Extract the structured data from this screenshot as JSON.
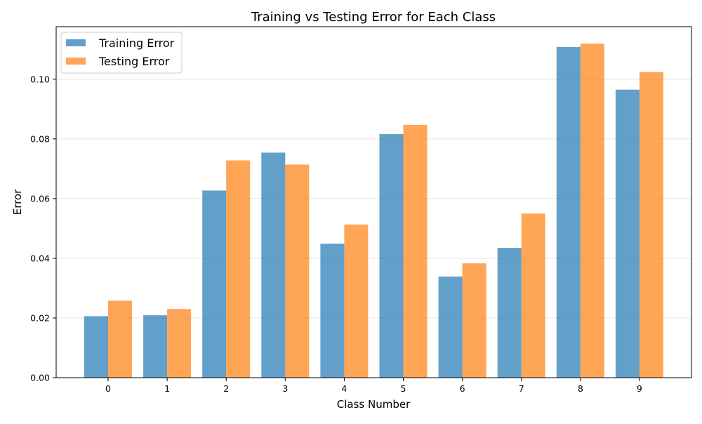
{
  "chart_data": {
    "type": "bar",
    "title": "Training vs Testing Error for Each Class",
    "xlabel": "Class Number",
    "ylabel": "Error",
    "categories": [
      "0",
      "1",
      "2",
      "3",
      "4",
      "5",
      "6",
      "7",
      "8",
      "9"
    ],
    "series": [
      {
        "name": "Training Error",
        "color": "#1f77b4",
        "values": [
          0.0206,
          0.0209,
          0.0627,
          0.0754,
          0.0449,
          0.0816,
          0.0339,
          0.0435,
          0.1108,
          0.0965
        ]
      },
      {
        "name": "Testing Error",
        "color": "#ff7f0e",
        "values": [
          0.0258,
          0.023,
          0.0728,
          0.0714,
          0.0513,
          0.0847,
          0.0383,
          0.055,
          0.1119,
          0.1024
        ]
      }
    ],
    "ylim": [
      0,
      0.1176
    ],
    "yticks": [
      "0.00",
      "0.02",
      "0.04",
      "0.06",
      "0.08",
      "0.10"
    ],
    "grid": "y",
    "legend_position": "upper-left"
  }
}
